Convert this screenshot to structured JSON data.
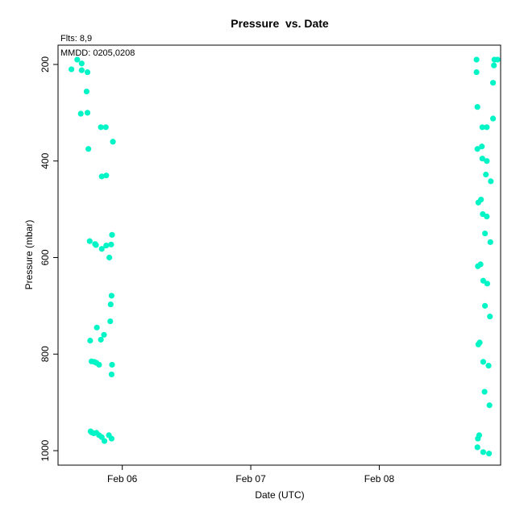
{
  "chart_data": {
    "type": "scatter",
    "title": "Pressure  vs. Date",
    "subtitle": "Flts: 8,9",
    "annotation": "MMDD: 0205,0208",
    "xlabel": "Date (UTC)",
    "ylabel": "Pressure (mbar)",
    "x_ticks": [
      {
        "label": "Feb 06",
        "value": "2024-02-06T00:00"
      },
      {
        "label": "Feb 07",
        "value": "2024-02-07T00:00"
      },
      {
        "label": "Feb 08",
        "value": "2024-02-08T00:00"
      }
    ],
    "y_ticks": [
      200,
      400,
      600,
      800,
      1000
    ],
    "xlim": [
      "2024-02-05T12:00",
      "2024-02-08T22:40"
    ],
    "ylim": [
      1030,
      160
    ],
    "y_inverted": true,
    "point_color": "#00f5c6",
    "series": [
      {
        "points": [
          [
            "2024-02-05T14:30",
            210
          ],
          [
            "2024-02-05T15:35",
            190
          ],
          [
            "2024-02-05T16:25",
            198
          ],
          [
            "2024-02-05T16:25",
            212
          ],
          [
            "2024-02-05T17:30",
            216
          ],
          [
            "2024-02-05T17:20",
            256
          ],
          [
            "2024-02-05T16:15",
            302
          ],
          [
            "2024-02-05T17:30",
            300
          ],
          [
            "2024-02-05T17:40",
            375
          ],
          [
            "2024-02-05T20:00",
            330
          ],
          [
            "2024-02-05T20:55",
            330
          ],
          [
            "2024-02-05T22:15",
            360
          ],
          [
            "2024-02-05T20:10",
            432
          ],
          [
            "2024-02-05T21:00",
            430
          ],
          [
            "2024-02-05T17:55",
            566
          ],
          [
            "2024-02-05T18:55",
            572
          ],
          [
            "2024-02-05T19:05",
            574
          ],
          [
            "2024-02-05T20:10",
            582
          ],
          [
            "2024-02-05T21:00",
            575
          ],
          [
            "2024-02-05T21:55",
            573
          ],
          [
            "2024-02-05T21:35",
            600
          ],
          [
            "2024-02-05T22:05",
            553
          ],
          [
            "2024-02-05T22:00",
            679
          ],
          [
            "2024-02-05T21:50",
            697
          ],
          [
            "2024-02-05T21:45",
            732
          ],
          [
            "2024-02-05T20:35",
            760
          ],
          [
            "2024-02-05T19:15",
            745
          ],
          [
            "2024-02-05T18:00",
            772
          ],
          [
            "2024-02-05T20:00",
            770
          ],
          [
            "2024-02-05T18:15",
            815
          ],
          [
            "2024-02-05T18:45",
            816
          ],
          [
            "2024-02-05T19:10",
            818
          ],
          [
            "2024-02-05T19:40",
            822
          ],
          [
            "2024-02-05T22:05",
            822
          ],
          [
            "2024-02-05T22:00",
            842
          ],
          [
            "2024-02-05T18:15",
            962
          ],
          [
            "2024-02-05T18:40",
            964
          ],
          [
            "2024-02-05T19:10",
            963
          ],
          [
            "2024-02-05T19:40",
            968
          ],
          [
            "2024-02-05T20:10",
            972
          ],
          [
            "2024-02-05T20:40",
            980
          ],
          [
            "2024-02-05T21:30",
            968
          ],
          [
            "2024-02-05T22:00",
            975
          ],
          [
            "2024-02-05T18:05",
            960
          ],
          [
            "2024-02-08T18:10",
            190
          ],
          [
            "2024-02-08T21:30",
            190
          ],
          [
            "2024-02-08T22:05",
            190
          ],
          [
            "2024-02-08T21:25",
            202
          ],
          [
            "2024-02-08T18:10",
            216
          ],
          [
            "2024-02-08T21:15",
            238
          ],
          [
            "2024-02-08T18:20",
            288
          ],
          [
            "2024-02-08T21:15",
            312
          ],
          [
            "2024-02-08T19:15",
            330
          ],
          [
            "2024-02-08T20:05",
            330
          ],
          [
            "2024-02-08T19:10",
            370
          ],
          [
            "2024-02-08T18:20",
            375
          ],
          [
            "2024-02-08T19:15",
            395
          ],
          [
            "2024-02-08T20:05",
            400
          ],
          [
            "2024-02-08T19:55",
            428
          ],
          [
            "2024-02-08T20:50",
            442
          ],
          [
            "2024-02-08T19:00",
            480
          ],
          [
            "2024-02-08T18:30",
            486
          ],
          [
            "2024-02-08T19:20",
            510
          ],
          [
            "2024-02-08T20:05",
            515
          ],
          [
            "2024-02-08T19:45",
            550
          ],
          [
            "2024-02-08T20:45",
            568
          ],
          [
            "2024-02-08T18:55",
            614
          ],
          [
            "2024-02-08T18:25",
            618
          ],
          [
            "2024-02-08T19:25",
            648
          ],
          [
            "2024-02-08T20:10",
            654
          ],
          [
            "2024-02-08T19:45",
            700
          ],
          [
            "2024-02-08T20:40",
            722
          ],
          [
            "2024-02-08T18:45",
            776
          ],
          [
            "2024-02-08T18:30",
            780
          ],
          [
            "2024-02-08T19:25",
            816
          ],
          [
            "2024-02-08T20:25",
            824
          ],
          [
            "2024-02-08T19:40",
            878
          ],
          [
            "2024-02-08T20:35",
            906
          ],
          [
            "2024-02-08T18:40",
            968
          ],
          [
            "2024-02-08T18:25",
            975
          ],
          [
            "2024-02-08T18:20",
            993
          ],
          [
            "2024-02-08T19:25",
            1003
          ],
          [
            "2024-02-08T20:30",
            1006
          ]
        ]
      }
    ],
    "grid": false
  }
}
